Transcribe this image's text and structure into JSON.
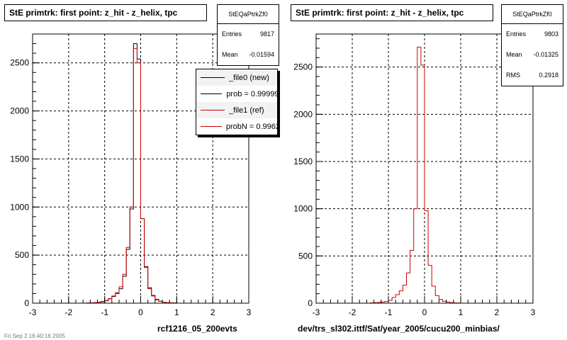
{
  "colors": {
    "new": "#000000",
    "ref": "#cc0000",
    "grid": "#000000"
  },
  "left": {
    "title": "StE primtrk: first point: z_hit - z_helix, tpc",
    "stats": {
      "name": "StEQaPtrkZf0",
      "entries_label": "Entries",
      "entries": "9817",
      "mean_label": "Mean",
      "mean": "-0.01594"
    },
    "legend": [
      {
        "label": "_file0 (new)",
        "color": "#000000"
      },
      {
        "label": "prob = 0.999994",
        "color": "#000000"
      },
      {
        "label": "_file1 (ref)",
        "color": "#cc0000"
      },
      {
        "label": "probN = 0.99625",
        "color": "#cc0000"
      }
    ],
    "footer": "rcf1216_05_200evts"
  },
  "right": {
    "title": "StE primtrk: first point: z_hit - z_helix, tpc",
    "stats": {
      "name": "StEQaPtrkZf0",
      "entries_label": "Entries",
      "entries": "9803",
      "mean_label": "Mean",
      "mean": "-0.01325",
      "rms_label": "RMS",
      "rms": "0.2918"
    },
    "footer": "dev/trs_sl302.ittf/Sat/year_2005/cucu200_minbias/"
  },
  "corner_note": "Fri Sep  2 16:40:16 2005",
  "chart_data": [
    {
      "type": "bar",
      "title": "StE primtrk: first point: z_hit - z_helix, tpc",
      "xlim": [
        -3,
        3
      ],
      "ylim": [
        0,
        2800
      ],
      "xticks": [
        -3,
        -2,
        -1,
        0,
        1,
        2,
        3
      ],
      "yticks": [
        500,
        1000,
        1500,
        2000,
        2500
      ],
      "grid": true,
      "bin_edges": [
        -1.5,
        -1.4,
        -1.3,
        -1.2,
        -1.1,
        -1.0,
        -0.9,
        -0.8,
        -0.7,
        -0.6,
        -0.5,
        -0.4,
        -0.3,
        -0.2,
        -0.1,
        0.0,
        0.1,
        0.2,
        0.3,
        0.4,
        0.5,
        0.6,
        0.7,
        0.8,
        0.9,
        1.0
      ],
      "series": [
        {
          "name": "_file0 (new)",
          "color": "#000000",
          "values": [
            2,
            3,
            5,
            10,
            15,
            25,
            45,
            70,
            100,
            150,
            280,
            560,
            980,
            2700,
            2540,
            880,
            380,
            160,
            80,
            40,
            20,
            10,
            5,
            3,
            2
          ]
        },
        {
          "name": "_file1 (ref)",
          "color": "#cc0000",
          "values": [
            2,
            4,
            6,
            10,
            18,
            28,
            48,
            75,
            110,
            170,
            300,
            580,
            1000,
            2650,
            2500,
            880,
            370,
            150,
            75,
            35,
            18,
            10,
            5,
            3,
            2
          ]
        }
      ]
    },
    {
      "type": "bar",
      "title": "StE primtrk: first point: z_hit - z_helix, tpc",
      "xlim": [
        -3,
        3
      ],
      "ylim": [
        0,
        2850
      ],
      "xticks": [
        -3,
        -2,
        -1,
        0,
        1,
        2,
        3
      ],
      "yticks": [
        500,
        1000,
        1500,
        2000,
        2500
      ],
      "grid": true,
      "bin_edges": [
        -1.5,
        -1.4,
        -1.3,
        -1.2,
        -1.1,
        -1.0,
        -0.9,
        -0.8,
        -0.7,
        -0.6,
        -0.5,
        -0.4,
        -0.3,
        -0.2,
        -0.1,
        0.0,
        0.1,
        0.2,
        0.3,
        0.4,
        0.5,
        0.6,
        0.7,
        0.8,
        0.9,
        1.0
      ],
      "series": [
        {
          "name": "",
          "color": "#cc0000",
          "values": [
            3,
            5,
            8,
            12,
            18,
            30,
            60,
            90,
            130,
            190,
            320,
            560,
            1000,
            2710,
            2520,
            980,
            400,
            180,
            80,
            40,
            20,
            12,
            6,
            3,
            2
          ]
        }
      ]
    }
  ]
}
